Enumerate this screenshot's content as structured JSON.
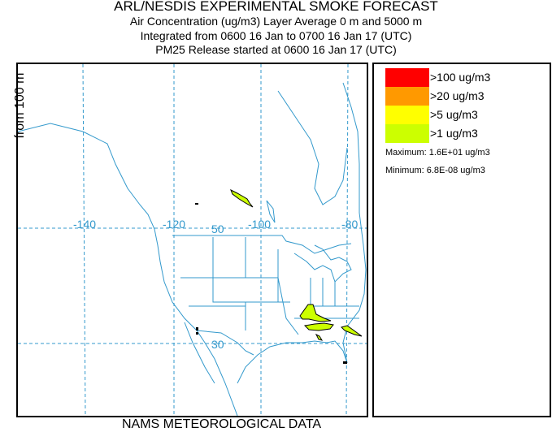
{
  "title": "ARL/NESDIS EXPERIMENTAL SMOKE FORECAST",
  "subtitle_lines": [
    "Air Concentration (ug/m3) Layer Average    0 m and  5000 m",
    "Integrated from 0600 16 Jan to 0700 16 Jan 17 (UTC)",
    "PM25 Release started at 0600 16 Jan 17 (UTC)"
  ],
  "left_label": "from   100 m",
  "bottom_label": "NAMS METEOROLOGICAL DATA",
  "map": {
    "longitude_labels": [
      "-140",
      "-120",
      "-100",
      "-80"
    ],
    "latitude_labels": [
      "50",
      "30"
    ],
    "graticule_color": "#3399cc",
    "plume_color": "#ccff00"
  },
  "legend": {
    "items": [
      {
        "label": ">100 ug/m3",
        "color": "#ff0000"
      },
      {
        "label": ">20 ug/m3",
        "color": "#ff9900"
      },
      {
        "label": ">5 ug/m3",
        "color": "#ffff00"
      },
      {
        "label": ">1 ug/m3",
        "color": "#ccff00"
      }
    ],
    "maximum": "Maximum: 1.6E+01 ug/m3",
    "minimum": "Minimum: 6.8E-08 ug/m3"
  }
}
